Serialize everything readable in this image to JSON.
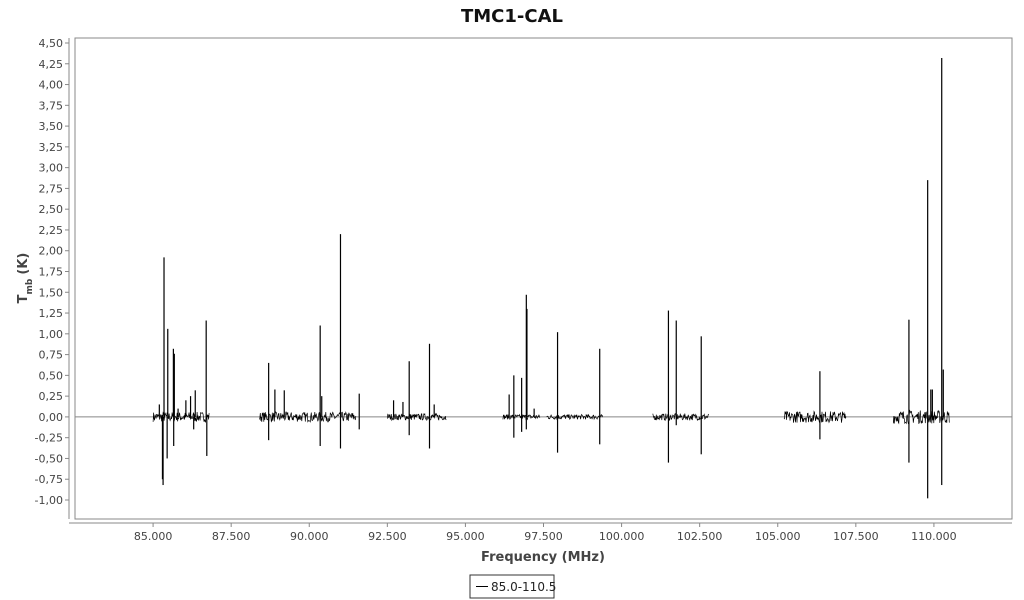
{
  "chart_data": {
    "type": "line",
    "title": "TMC1-CAL",
    "xlabel": "Frequency (MHz)",
    "ylabel": "T",
    "ylabel_subscript": "mb",
    "ylabel_unit": "(K)",
    "xlim": [
      82.5,
      112.5
    ],
    "ylim": [
      -1.15,
      4.55
    ],
    "x_ticks": [
      85,
      87.5,
      90,
      92.5,
      95,
      97.5,
      100,
      102.5,
      105,
      107.5,
      110
    ],
    "x_tick_labels": [
      "85.000",
      "87.500",
      "90.000",
      "92.500",
      "95.000",
      "97.500",
      "100.000",
      "102.500",
      "105.000",
      "107.500",
      "110.000"
    ],
    "y_ticks": [
      -1,
      -0.75,
      -0.5,
      -0.25,
      0,
      0.25,
      0.5,
      0.75,
      1,
      1.25,
      1.5,
      1.75,
      2,
      2.25,
      2.5,
      2.75,
      3,
      3.25,
      3.5,
      3.75,
      4,
      4.25,
      4.5
    ],
    "y_tick_labels": [
      "-1,00",
      "-0,75",
      "-0,50",
      "-0,25",
      "0,00",
      "0,25",
      "0,50",
      "0,75",
      "1,00",
      "1,25",
      "1,50",
      "1,75",
      "2,00",
      "2,25",
      "2,50",
      "2,75",
      "3,00",
      "3,25",
      "3,50",
      "3,75",
      "4,00",
      "4,25",
      "4,50"
    ],
    "grid": false,
    "legend_position": "bottom-center",
    "series": [
      {
        "name": "85.0-110.5",
        "color": "#000000",
        "baseline": 0,
        "noise_bands": [
          {
            "x_start": 85.0,
            "x_end": 86.8,
            "noise": 0.06
          },
          {
            "x_start": 88.4,
            "x_end": 91.5,
            "noise": 0.06
          },
          {
            "x_start": 92.5,
            "x_end": 94.4,
            "noise": 0.04
          },
          {
            "x_start": 96.2,
            "x_end": 97.4,
            "noise": 0.03
          },
          {
            "x_start": 97.6,
            "x_end": 99.4,
            "noise": 0.03
          },
          {
            "x_start": 101.0,
            "x_end": 102.8,
            "noise": 0.04
          },
          {
            "x_start": 105.2,
            "x_end": 107.2,
            "noise": 0.07
          },
          {
            "x_start": 108.7,
            "x_end": 110.5,
            "noise": 0.08
          }
        ],
        "peaks": [
          {
            "x": 85.2,
            "y": 0.15
          },
          {
            "x": 85.3,
            "y": -0.75
          },
          {
            "x": 85.32,
            "y": -0.82
          },
          {
            "x": 85.35,
            "y": 1.92
          },
          {
            "x": 85.47,
            "y": 1.06
          },
          {
            "x": 85.45,
            "y": -0.5
          },
          {
            "x": 85.65,
            "y": 0.82
          },
          {
            "x": 85.68,
            "y": 0.76
          },
          {
            "x": 85.66,
            "y": -0.35
          },
          {
            "x": 85.8,
            "y": 0.1
          },
          {
            "x": 86.05,
            "y": 0.2
          },
          {
            "x": 86.2,
            "y": 0.25
          },
          {
            "x": 86.35,
            "y": 0.32
          },
          {
            "x": 86.3,
            "y": -0.15
          },
          {
            "x": 86.7,
            "y": 1.16
          },
          {
            "x": 86.72,
            "y": -0.47
          },
          {
            "x": 88.7,
            "y": 0.65
          },
          {
            "x": 88.7,
            "y": -0.28
          },
          {
            "x": 88.9,
            "y": 0.33
          },
          {
            "x": 89.2,
            "y": 0.32
          },
          {
            "x": 90.35,
            "y": -0.35
          },
          {
            "x": 90.35,
            "y": 1.1
          },
          {
            "x": 90.4,
            "y": 0.25
          },
          {
            "x": 91.0,
            "y": 2.2
          },
          {
            "x": 91.0,
            "y": -0.38
          },
          {
            "x": 91.6,
            "y": 0.28
          },
          {
            "x": 91.6,
            "y": -0.15
          },
          {
            "x": 92.7,
            "y": 0.2
          },
          {
            "x": 93.0,
            "y": 0.18
          },
          {
            "x": 93.2,
            "y": 0.67
          },
          {
            "x": 93.2,
            "y": -0.22
          },
          {
            "x": 93.85,
            "y": 0.88
          },
          {
            "x": 93.85,
            "y": -0.38
          },
          {
            "x": 94.0,
            "y": 0.15
          },
          {
            "x": 96.4,
            "y": 0.27
          },
          {
            "x": 96.55,
            "y": 0.5
          },
          {
            "x": 96.55,
            "y": -0.25
          },
          {
            "x": 96.8,
            "y": 0.47
          },
          {
            "x": 96.8,
            "y": -0.18
          },
          {
            "x": 96.95,
            "y": 1.47
          },
          {
            "x": 96.97,
            "y": 1.3
          },
          {
            "x": 96.95,
            "y": -0.15
          },
          {
            "x": 97.2,
            "y": 0.1
          },
          {
            "x": 97.95,
            "y": 1.02
          },
          {
            "x": 97.95,
            "y": -0.43
          },
          {
            "x": 99.3,
            "y": 0.82
          },
          {
            "x": 99.3,
            "y": -0.33
          },
          {
            "x": 101.5,
            "y": 1.28
          },
          {
            "x": 101.5,
            "y": -0.55
          },
          {
            "x": 101.75,
            "y": 1.16
          },
          {
            "x": 101.75,
            "y": -0.1
          },
          {
            "x": 102.55,
            "y": 0.97
          },
          {
            "x": 102.55,
            "y": -0.45
          },
          {
            "x": 106.35,
            "y": 0.55
          },
          {
            "x": 106.35,
            "y": -0.27
          },
          {
            "x": 109.2,
            "y": 1.17
          },
          {
            "x": 109.2,
            "y": -0.55
          },
          {
            "x": 109.8,
            "y": 2.85
          },
          {
            "x": 109.8,
            "y": -0.98
          },
          {
            "x": 109.9,
            "y": 0.33
          },
          {
            "x": 109.95,
            "y": 0.33
          },
          {
            "x": 110.25,
            "y": 4.32
          },
          {
            "x": 110.25,
            "y": -0.82
          },
          {
            "x": 110.3,
            "y": 0.57
          }
        ]
      }
    ]
  }
}
